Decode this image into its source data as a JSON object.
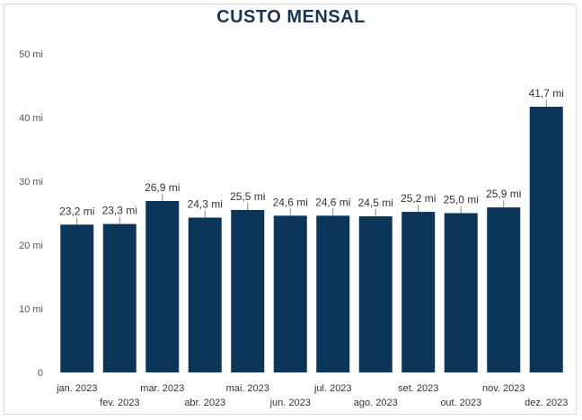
{
  "chart_data": {
    "type": "bar",
    "title": "CUSTO MENSAL",
    "xlabel": "",
    "ylabel": "",
    "categories": [
      "jan. 2023",
      "fev. 2023",
      "mar. 2023",
      "abr. 2023",
      "mai. 2023",
      "jun. 2023",
      "jul. 2023",
      "ago. 2023",
      "set. 2023",
      "out. 2023",
      "nov. 2023",
      "dez. 2023"
    ],
    "values": [
      23.2,
      23.3,
      26.9,
      24.3,
      25.5,
      24.6,
      24.6,
      24.5,
      25.2,
      25.0,
      25.9,
      41.7
    ],
    "data_labels": [
      "23,2 mi",
      "23,3 mi",
      "26,9 mi",
      "24,3 mi",
      "25,5 mi",
      "24,6 mi",
      "24,6 mi",
      "24,5 mi",
      "25,2 mi",
      "25,0 mi",
      "25,9 mi",
      "41,7 mi"
    ],
    "y_ticks": [
      0,
      10,
      20,
      30,
      40,
      50
    ],
    "y_tick_labels": [
      "0",
      "10 mi",
      "20 mi",
      "30 mi",
      "40 mi",
      "50 mi"
    ],
    "ylim": [
      0,
      50
    ],
    "grid": false,
    "legend": "none",
    "bar_color": "#0b3559"
  }
}
